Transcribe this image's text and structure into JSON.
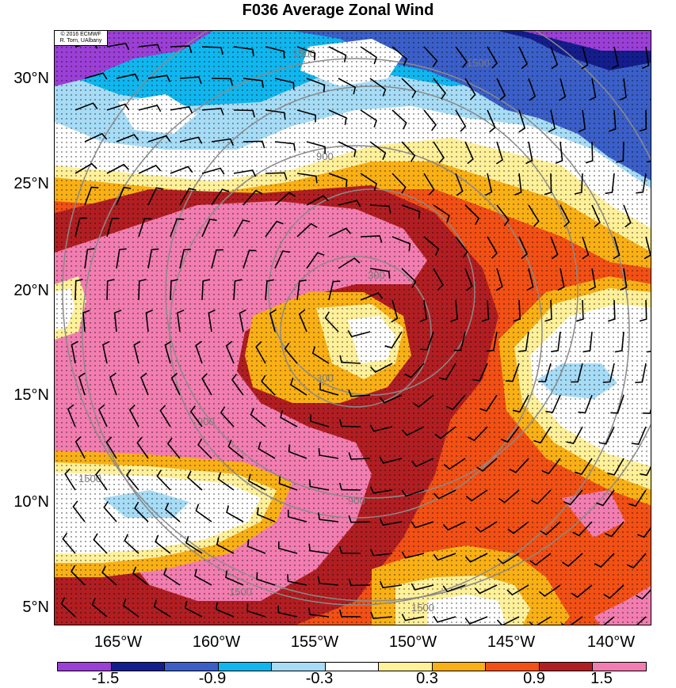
{
  "title": "F036 Average Zonal Wind",
  "credit": {
    "line1": "© 2016 ECMWF",
    "line2": "R. Torn, UAlbany"
  },
  "map": {
    "lon_range": [
      -168,
      -138
    ],
    "lat_range": [
      4,
      32
    ],
    "lat_ticks": [
      "30°N",
      "25°N",
      "20°N",
      "15°N",
      "10°N",
      "5°N"
    ],
    "lon_ticks": [
      "165°W",
      "160°W",
      "155°W",
      "150°W",
      "145°W",
      "140°W"
    ],
    "range_ring_labels": [
      "300",
      "300",
      "900",
      "900",
      "900",
      "1500",
      "1500",
      "1500",
      "1500",
      "1500"
    ],
    "stippled_fields": true,
    "wind_barbs": true
  },
  "colorbar": {
    "colors": [
      "#9b3fd6",
      "#141d8c",
      "#3b5fc8",
      "#10b6ee",
      "#a7dcf6",
      "#ffffff",
      "#fff09a",
      "#f9b015",
      "#f25014",
      "#b11e22",
      "#f27db0"
    ],
    "labels": [
      "-1.5",
      "-0.9",
      "-0.3",
      "0.3",
      "0.9",
      "1.5"
    ]
  }
}
